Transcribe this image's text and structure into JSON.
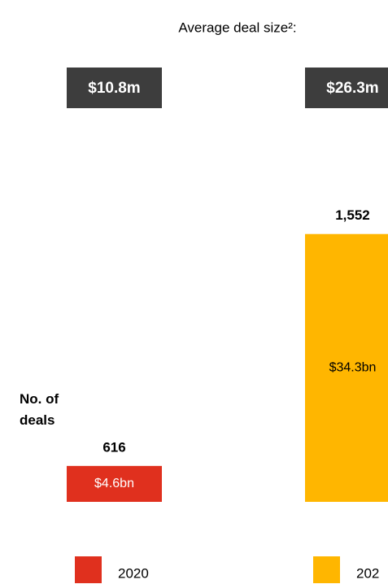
{
  "chart_data": {
    "type": "bar",
    "title": "Average deal size²:",
    "categories": [
      "2020",
      "202"
    ],
    "values": [
      4.6,
      34.3
    ],
    "value_labels": [
      "$4.6bn",
      "$34.3bn"
    ],
    "colors": [
      "#e0301e",
      "#ffb600"
    ],
    "avg_deal_size": {
      "values": [
        10.8,
        26.3
      ],
      "value_labels": [
        "$10.8m",
        "$26.3m"
      ]
    },
    "deals": {
      "label": "No. of deals",
      "values": [
        616,
        1552
      ],
      "value_labels": [
        "616",
        "1,552"
      ]
    }
  }
}
